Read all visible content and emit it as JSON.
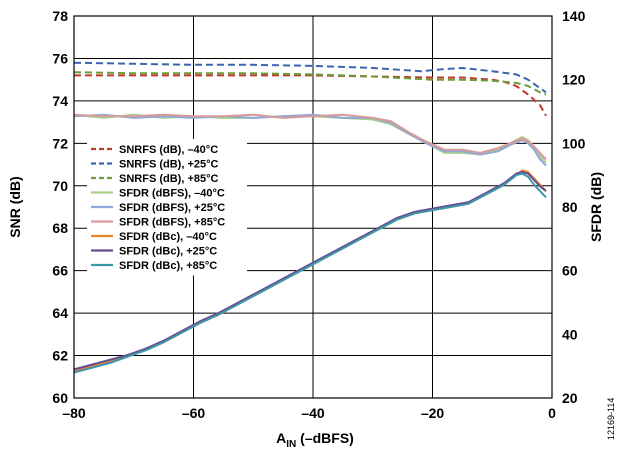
{
  "chart_data": {
    "type": "line",
    "xlabel_main": "A",
    "xlabel_sub": "IN",
    "xlabel_rest": " (–dBFS)",
    "ylabel_left": "SNR (dB)",
    "ylabel_right": "SFDR (dB)",
    "figure_id": "12169-114",
    "xlim": [
      -80,
      0
    ],
    "ylim_left": [
      60,
      78
    ],
    "ylim_right": [
      20,
      140
    ],
    "xticks": [
      -80,
      -60,
      -40,
      -20,
      0
    ],
    "xtick_labels": [
      "–80",
      "–60",
      "–40",
      "–20",
      "0"
    ],
    "yticks_left": [
      60,
      62,
      64,
      66,
      68,
      70,
      72,
      74,
      76,
      78
    ],
    "yticks_right": [
      20,
      40,
      60,
      80,
      100,
      120,
      140
    ],
    "grid": true,
    "legend_position": "left",
    "series": [
      {
        "name": "SNRFS (dB), –40°C",
        "axis": "left",
        "color": "#c0392b",
        "dashed": true,
        "x": [
          -80,
          -70,
          -60,
          -50,
          -40,
          -30,
          -20,
          -15,
          -10,
          -8,
          -6,
          -4,
          -2,
          -1
        ],
        "y": [
          75.2,
          75.2,
          75.2,
          75.2,
          75.2,
          75.15,
          75.1,
          75.1,
          75.0,
          74.9,
          74.7,
          74.3,
          73.8,
          73.3
        ]
      },
      {
        "name": "SNRFS (dB), +25°C",
        "axis": "left",
        "color": "#3a66b0",
        "dashed": true,
        "x": [
          -80,
          -70,
          -60,
          -50,
          -40,
          -30,
          -22,
          -18,
          -15,
          -10,
          -6,
          -4,
          -2,
          -1
        ],
        "y": [
          75.8,
          75.75,
          75.7,
          75.7,
          75.65,
          75.55,
          75.4,
          75.5,
          75.55,
          75.4,
          75.25,
          75.0,
          74.6,
          74.4
        ]
      },
      {
        "name": "SNRFS (dB), +85°C",
        "axis": "left",
        "color": "#6f9a38",
        "dashed": true,
        "x": [
          -80,
          -70,
          -60,
          -50,
          -40,
          -30,
          -20,
          -15,
          -10,
          -8,
          -6,
          -4,
          -2,
          -1
        ],
        "y": [
          75.35,
          75.3,
          75.3,
          75.3,
          75.25,
          75.15,
          75.0,
          75.0,
          74.95,
          74.9,
          74.85,
          74.7,
          74.4,
          74.3
        ]
      },
      {
        "name": "SFDR (dBFS), –40°C",
        "axis": "right",
        "color": "#a8cf8a",
        "dashed": false,
        "x": [
          -80,
          -75,
          -70,
          -65,
          -60,
          -55,
          -50,
          -45,
          -40,
          -35,
          -30,
          -27,
          -24,
          -21,
          -18,
          -15,
          -12,
          -9,
          -7,
          -5,
          -4,
          -3,
          -2,
          -1
        ],
        "y": [
          109,
          108,
          109,
          108,
          108.5,
          108,
          108,
          108.5,
          108.5,
          108,
          107.5,
          106,
          103,
          100,
          97,
          97,
          96.5,
          98,
          100,
          102,
          101,
          99,
          96,
          94
        ]
      },
      {
        "name": "SFDR (dBFS), +25°C",
        "axis": "right",
        "color": "#8fa8d8",
        "dashed": false,
        "x": [
          -80,
          -75,
          -70,
          -65,
          -60,
          -55,
          -50,
          -45,
          -40,
          -35,
          -30,
          -27,
          -24,
          -21,
          -18,
          -15,
          -12,
          -9,
          -7,
          -5,
          -4,
          -3,
          -2,
          -1
        ],
        "y": [
          108.5,
          109,
          108,
          108.5,
          108,
          108.5,
          108,
          108.5,
          109,
          108,
          108,
          106.5,
          103,
          100,
          97.5,
          97.5,
          96.5,
          97.5,
          99.5,
          101,
          100,
          98,
          95,
          93
        ]
      },
      {
        "name": "SFDR (dBFS), +85°C",
        "axis": "right",
        "color": "#d99a9a",
        "dashed": false,
        "x": [
          -80,
          -75,
          -70,
          -65,
          -60,
          -55,
          -50,
          -45,
          -40,
          -35,
          -30,
          -27,
          -24,
          -21,
          -18,
          -15,
          -12,
          -9,
          -7,
          -5,
          -4,
          -3,
          -2,
          -1
        ],
        "y": [
          109,
          108.5,
          108.5,
          109,
          108.5,
          108.5,
          109,
          108,
          108.5,
          109,
          108,
          107,
          103.5,
          100.5,
          98,
          98,
          97,
          98.5,
          100,
          101.5,
          100.5,
          99,
          97,
          95
        ]
      },
      {
        "name": "SFDR (dBc), –40°C",
        "axis": "right",
        "color": "#e8842c",
        "dashed": false,
        "x": [
          -80,
          -77,
          -74,
          -71,
          -68,
          -65,
          -62,
          -59,
          -56,
          -53,
          -50,
          -47,
          -44,
          -41,
          -38,
          -35,
          -32,
          -29,
          -26,
          -23,
          -20,
          -17,
          -14,
          -11,
          -8,
          -6,
          -5,
          -4,
          -3,
          -2,
          -1
        ],
        "y": [
          28.5,
          30,
          31.5,
          33,
          35.5,
          37.5,
          40.5,
          43.5,
          46,
          49,
          52,
          55,
          58,
          61,
          64,
          67,
          70,
          73,
          76,
          78,
          79,
          80,
          81,
          84,
          87,
          90,
          91.5,
          91,
          89,
          87,
          85
        ]
      },
      {
        "name": "SFDR (dBc), +25°C",
        "axis": "right",
        "color": "#6a4c93",
        "dashed": false,
        "x": [
          -80,
          -77,
          -74,
          -71,
          -68,
          -65,
          -62,
          -59,
          -56,
          -53,
          -50,
          -47,
          -44,
          -41,
          -38,
          -35,
          -32,
          -29,
          -26,
          -23,
          -20,
          -17,
          -14,
          -11,
          -8,
          -6,
          -5,
          -4,
          -3,
          -2,
          -1
        ],
        "y": [
          29,
          30.5,
          32,
          33.5,
          35.5,
          38,
          41,
          44,
          46.5,
          49.5,
          52.5,
          55.5,
          58.5,
          61.5,
          64.5,
          67.5,
          70.5,
          73.5,
          76.5,
          78.5,
          79.5,
          80.5,
          81.5,
          84.5,
          87.5,
          90.5,
          91,
          90.5,
          88.5,
          86.5,
          85
        ]
      },
      {
        "name": "SFDR (dBc), +85°C",
        "axis": "right",
        "color": "#3a98a8",
        "dashed": false,
        "x": [
          -80,
          -77,
          -74,
          -71,
          -68,
          -65,
          -62,
          -59,
          -56,
          -53,
          -50,
          -47,
          -44,
          -41,
          -38,
          -35,
          -32,
          -29,
          -26,
          -23,
          -20,
          -17,
          -14,
          -11,
          -8,
          -6,
          -5,
          -4,
          -3,
          -2,
          -1
        ],
        "y": [
          28,
          29.5,
          31,
          33,
          35,
          37.5,
          40.5,
          43.5,
          46,
          49,
          52,
          55,
          58,
          61,
          64,
          67,
          70,
          73,
          76,
          78,
          79,
          80,
          81,
          84,
          87,
          90,
          90.5,
          89.5,
          87,
          85,
          83
        ]
      }
    ]
  }
}
